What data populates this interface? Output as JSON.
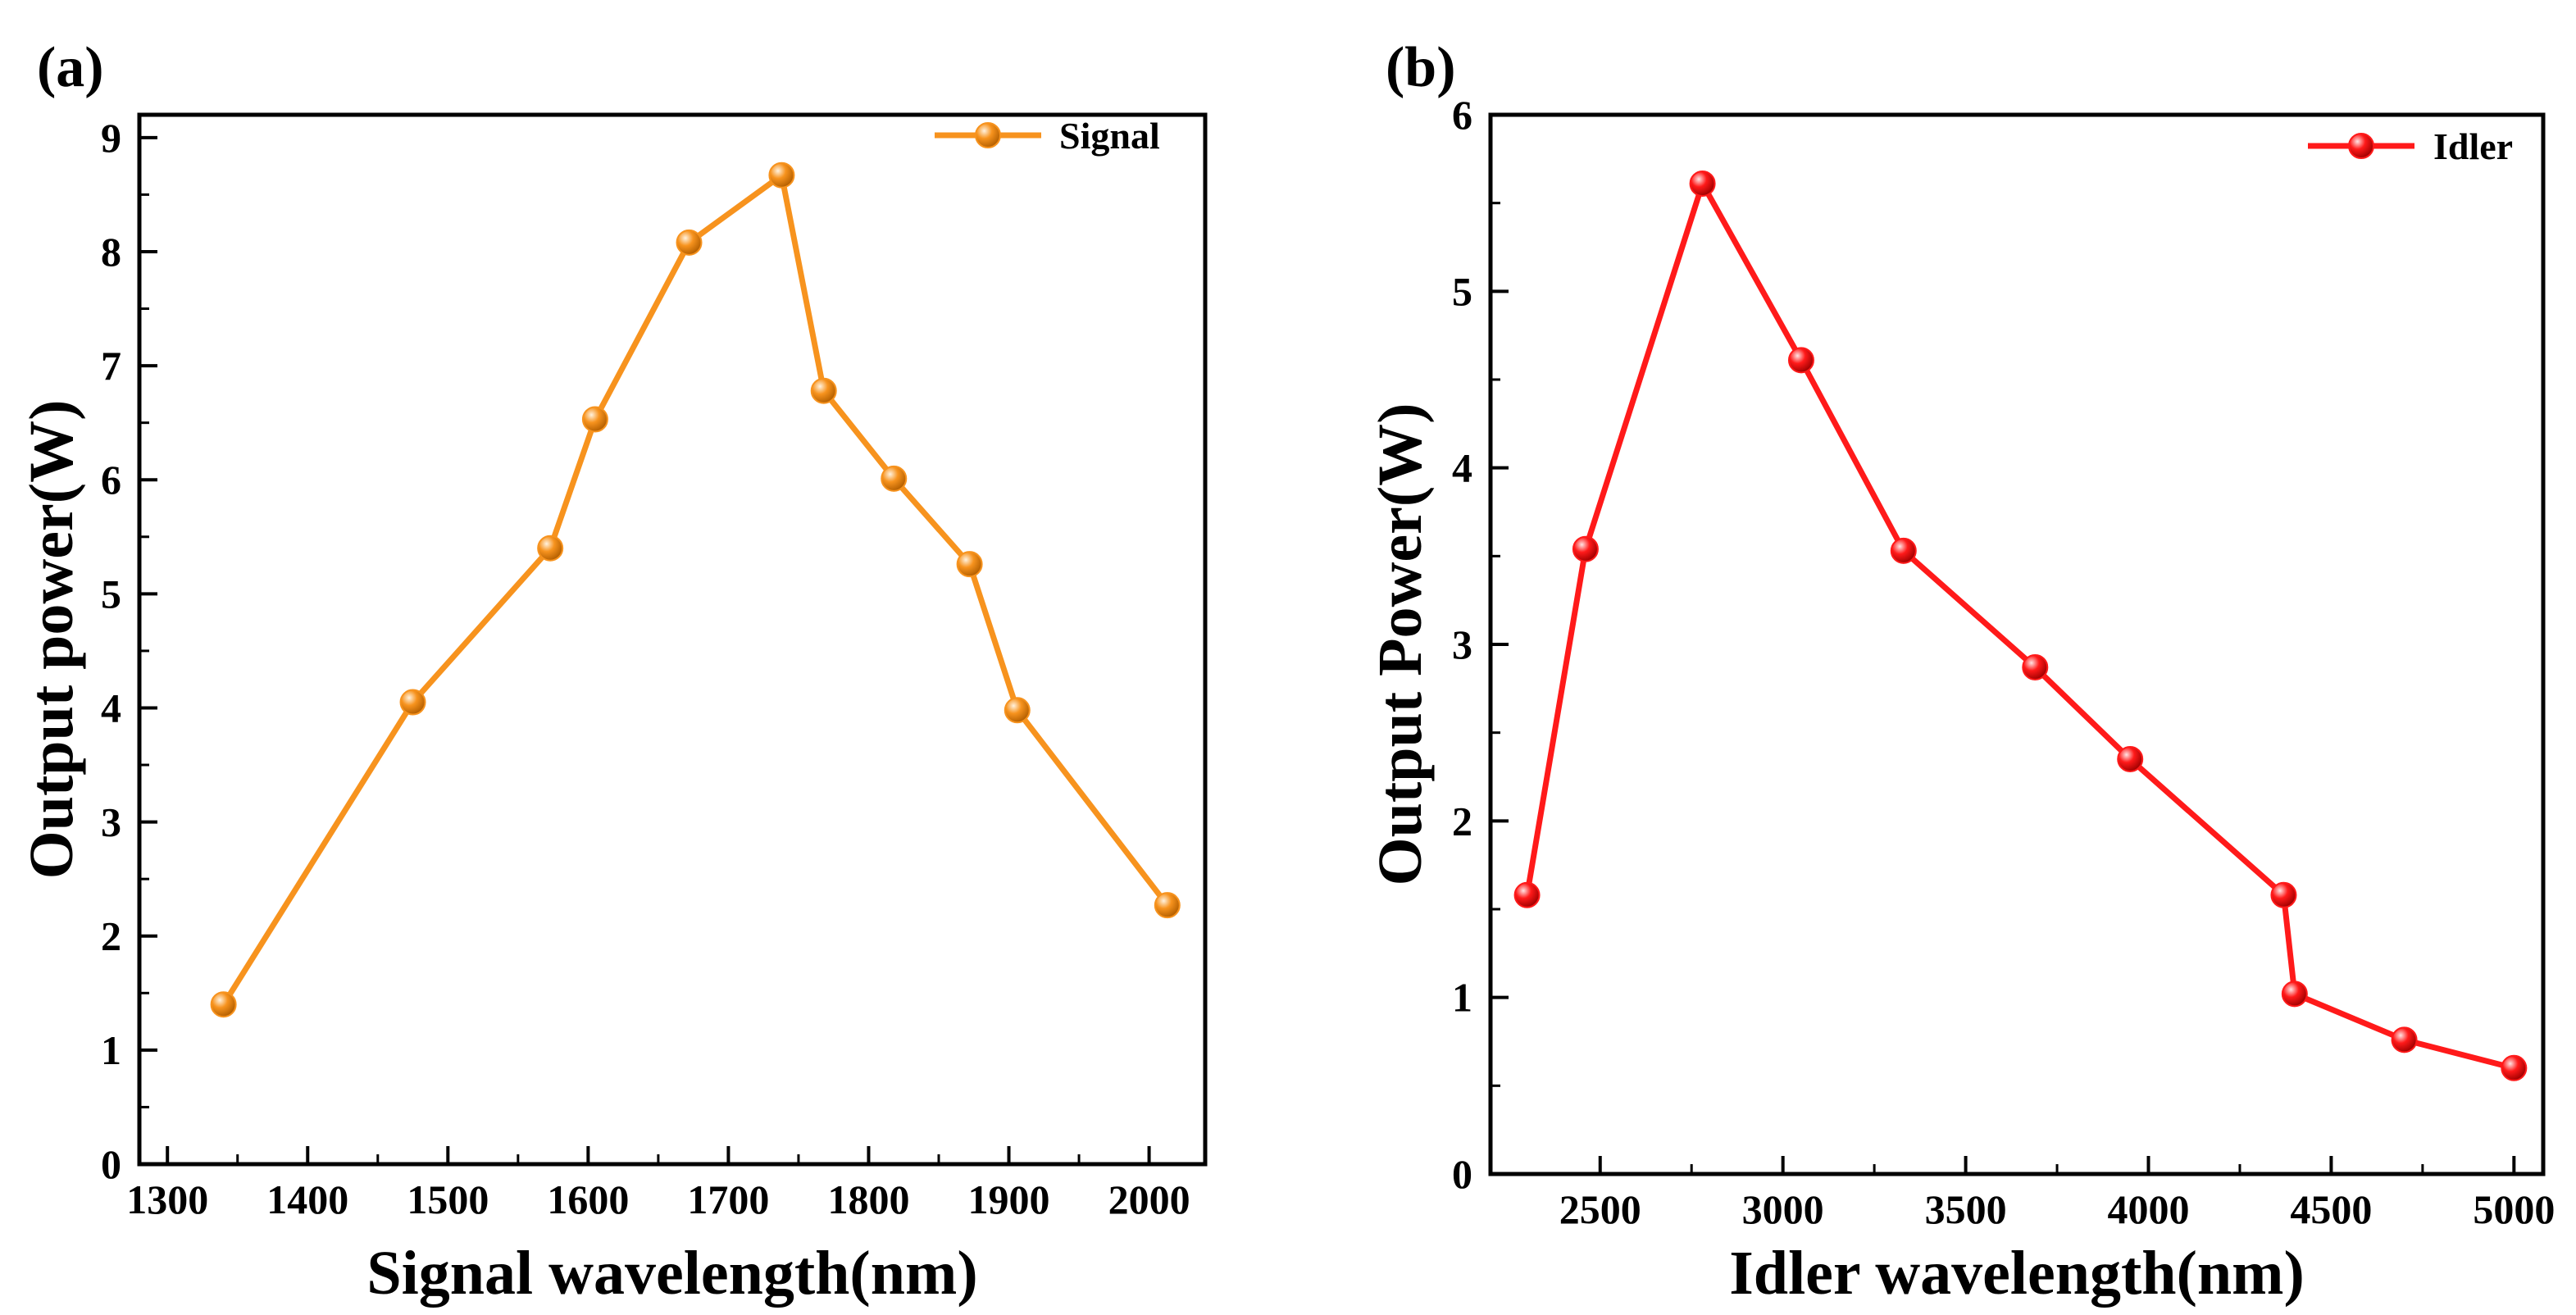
{
  "chart_data": [
    {
      "type": "line",
      "panel_label": "(a)",
      "title": "",
      "xlabel": "Signal wavelength(nm)",
      "ylabel": "Output power(W)",
      "xlim": [
        1280,
        2040
      ],
      "ylim": [
        0,
        9.2
      ],
      "xticks": [
        1300,
        1400,
        1500,
        1600,
        1700,
        1800,
        1900,
        2000
      ],
      "yticks": [
        0,
        1,
        2,
        3,
        4,
        5,
        6,
        7,
        8,
        9
      ],
      "grid": false,
      "legend": "top-right",
      "series": [
        {
          "name": "Signal",
          "color": "#F7931E",
          "x": [
            1340,
            1475,
            1573,
            1605,
            1672,
            1738,
            1768,
            1818,
            1872,
            1906,
            2013
          ],
          "y": [
            1.4,
            4.05,
            5.4,
            6.53,
            8.08,
            8.67,
            6.78,
            6.01,
            5.26,
            3.98,
            2.27
          ]
        }
      ]
    },
    {
      "type": "line",
      "panel_label": "(b)",
      "title": "",
      "xlabel": "Idler wavelength(nm)",
      "ylabel": "Output Power(W)",
      "xlim": [
        2200,
        5080
      ],
      "ylim": [
        0,
        6
      ],
      "xticks": [
        2500,
        3000,
        3500,
        4000,
        4500,
        5000
      ],
      "yticks": [
        0,
        1,
        2,
        3,
        4,
        5,
        6
      ],
      "grid": false,
      "legend": "top-right",
      "series": [
        {
          "name": "Idler",
          "color": "#FF1A1A",
          "x": [
            2300,
            2460,
            2780,
            3050,
            3330,
            3690,
            3950,
            4370,
            4400,
            4700,
            5000
          ],
          "y": [
            1.58,
            3.54,
            5.61,
            4.61,
            3.53,
            2.87,
            2.35,
            1.58,
            1.02,
            0.76,
            0.6
          ]
        }
      ]
    }
  ]
}
